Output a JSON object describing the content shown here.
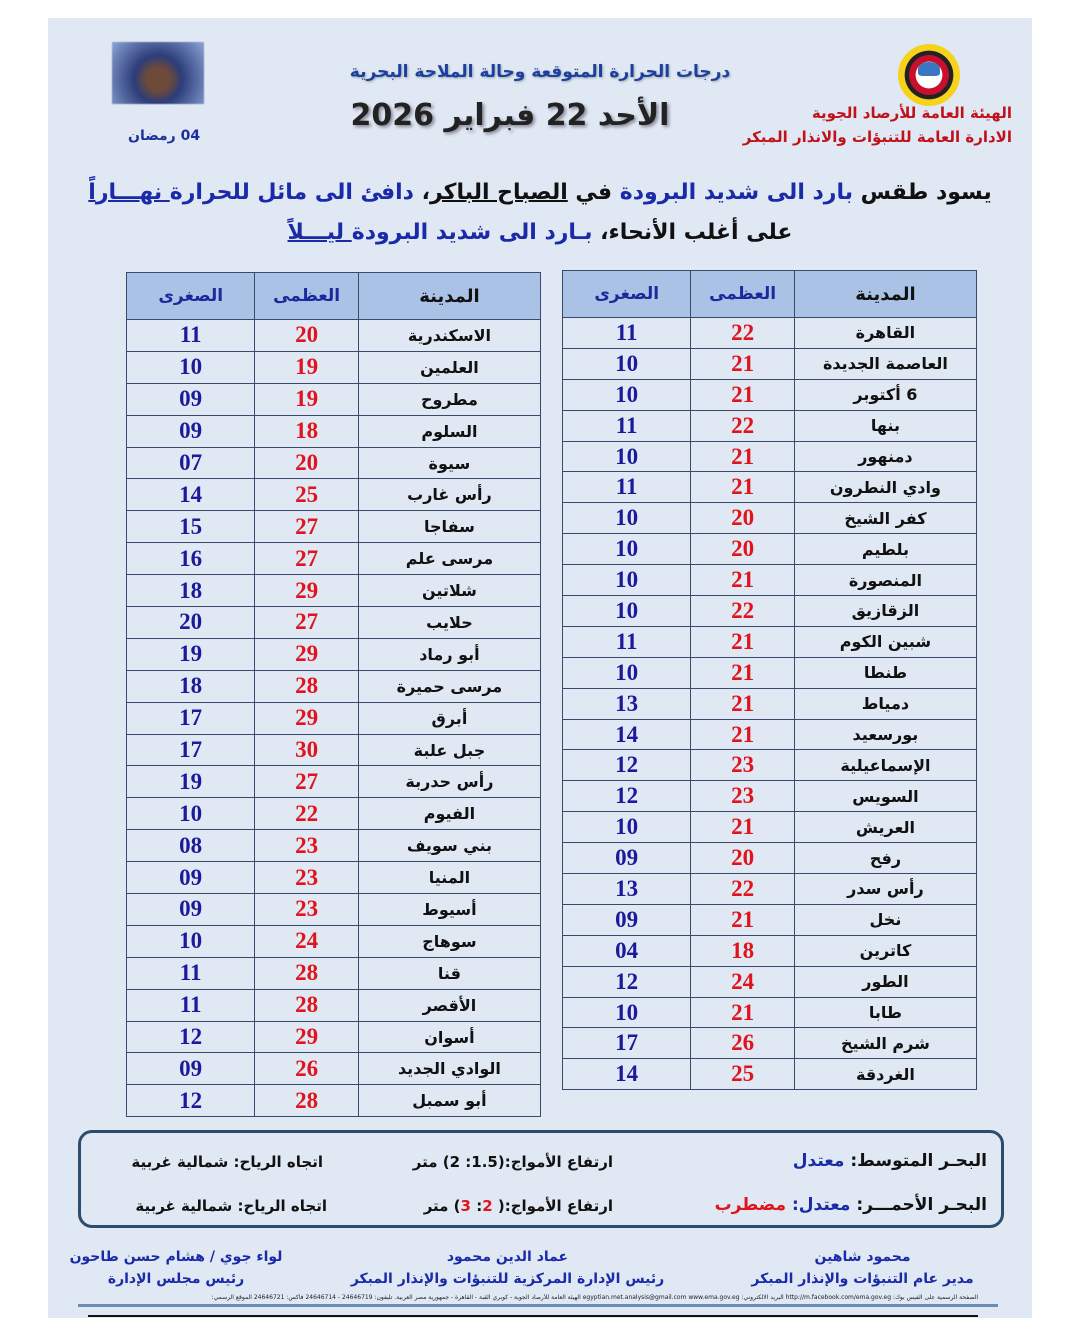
{
  "header": {
    "org_line1": "الهيئة العامة للأرصاد الجوية",
    "org_line2": "الادارة العامة للتنبؤات والانذار المبكر",
    "subtitle": "درجات الحرارة المتوقعة وحالة الملاحة البحرية",
    "date": "الأحد 22 فبراير 2026",
    "ramadan": "04 رمضان",
    "logo_icon": "ema-logo-icon",
    "ramadan_icon": "ramadan-lantern-image"
  },
  "summary": {
    "l1_a": "يسود طقس ",
    "l1_b": "بارد الى شديد البرودة",
    "l1_c": " في ",
    "l1_d": "الصباح الباكر",
    "l1_e": "، ",
    "l1_f": "دافئ الى مائل للحرارة",
    "l1_g": " نهـــاراً",
    "l2_a": "على أغلب الأنحاء، ",
    "l2_b": "بـارد الى شديد البرودة",
    "l2_c": " ليـــلاً"
  },
  "table_headers": {
    "city": "المدينة",
    "max": "العظمى",
    "min": "الصغرى"
  },
  "colors": {
    "max": "#e0141c",
    "min": "#1a1a9a",
    "header_bg": "#a9c2e6",
    "page_bg": "#dfe8f3"
  },
  "right_table": [
    [
      "القاهرة",
      "22",
      "11"
    ],
    [
      "العاصمة الجديدة",
      "21",
      "10"
    ],
    [
      "6 أكتوبر",
      "21",
      "10"
    ],
    [
      "بنها",
      "22",
      "11"
    ],
    [
      "دمنهور",
      "21",
      "10"
    ],
    [
      "وادي النطرون",
      "21",
      "11"
    ],
    [
      "كفر الشيخ",
      "20",
      "10"
    ],
    [
      "بلطيم",
      "20",
      "10"
    ],
    [
      "المنصورة",
      "21",
      "10"
    ],
    [
      "الزقازيق",
      "22",
      "10"
    ],
    [
      "شبين الكوم",
      "21",
      "11"
    ],
    [
      "طنطا",
      "21",
      "10"
    ],
    [
      "دمياط",
      "21",
      "13"
    ],
    [
      "بورسعيد",
      "21",
      "14"
    ],
    [
      "الإسماعيلية",
      "23",
      "12"
    ],
    [
      "السويس",
      "23",
      "12"
    ],
    [
      "العريش",
      "21",
      "10"
    ],
    [
      "رفح",
      "20",
      "09"
    ],
    [
      "رأس سدر",
      "22",
      "13"
    ],
    [
      "نخل",
      "21",
      "09"
    ],
    [
      "كاترين",
      "18",
      "04"
    ],
    [
      "الطور",
      "24",
      "12"
    ],
    [
      "طابا",
      "21",
      "10"
    ],
    [
      "شرم الشيخ",
      "26",
      "17"
    ],
    [
      "الغردقة",
      "25",
      "14"
    ]
  ],
  "left_table": [
    [
      "الاسكندرية",
      "20",
      "11"
    ],
    [
      "العلمين",
      "19",
      "10"
    ],
    [
      "مطروح",
      "19",
      "09"
    ],
    [
      "السلوم",
      "18",
      "09"
    ],
    [
      "سيوة",
      "20",
      "07"
    ],
    [
      "رأس غارب",
      "25",
      "14"
    ],
    [
      "سفاجا",
      "27",
      "15"
    ],
    [
      "مرسى علم",
      "27",
      "16"
    ],
    [
      "شلاتين",
      "29",
      "18"
    ],
    [
      "حلايب",
      "27",
      "20"
    ],
    [
      "أبو رماد",
      "29",
      "19"
    ],
    [
      "مرسى حميرة",
      "28",
      "18"
    ],
    [
      "أبرق",
      "29",
      "17"
    ],
    [
      "جبل علبة",
      "30",
      "17"
    ],
    [
      "رأس حدربة",
      "27",
      "19"
    ],
    [
      "الفيوم",
      "22",
      "10"
    ],
    [
      "بني سويف",
      "23",
      "08"
    ],
    [
      "المنيا",
      "23",
      "09"
    ],
    [
      "أسيوط",
      "23",
      "09"
    ],
    [
      "سوهاج",
      "24",
      "10"
    ],
    [
      "قنا",
      "28",
      "11"
    ],
    [
      "الأقصر",
      "28",
      "11"
    ],
    [
      "أسوان",
      "29",
      "12"
    ],
    [
      "الوادي الجديد",
      "26",
      "09"
    ],
    [
      "أبو سمبل",
      "28",
      "12"
    ]
  ],
  "sea": {
    "med_label": "البحـر المتوسط: ",
    "med_state": "معتدل",
    "med_waves": "ارتفاع الأمواج:(1.5: 2) متر",
    "med_wind": "اتجاه الرياح: شمالية غربية",
    "red_label": "البحـر الأحمـــر: ",
    "red_state1": "معتدل: ",
    "red_state2": "مضطرب",
    "red_waves_a": "ارتفاع الأمواج:( ",
    "red_waves_b": "2",
    "red_waves_c": ": ",
    "red_waves_d": "3",
    "red_waves_e": ") متر",
    "red_wind": "اتجاه الرياح: شمالية غربية"
  },
  "signatures": [
    {
      "name": "محمود شاهين",
      "title": "مدير عام التنبؤات والإنذار المبكر"
    },
    {
      "name": "عماد الدين محمود",
      "title": "رئيس الإدارة المركزية للتنبؤات والإنذار المبكر"
    },
    {
      "name": "لواء جوي / هشام حسن طاحون",
      "title": "رئيس مجلس الإدارة"
    }
  ],
  "footer": "الصفحة الرسمية على الفيس بوك: http://m.facebook.com/ema.gov.eg  البريد الالكتروني: egyptian.met.analysis@gmail.com  www.ema.gov.eg  الهيئة العامة للأرصاد الجوية - كوبري القبة - القاهرة - جمهورية مصر العربية. تليفون: 24646719 - 24646714 فاكس: 24646721 الموقع الرسمي:"
}
